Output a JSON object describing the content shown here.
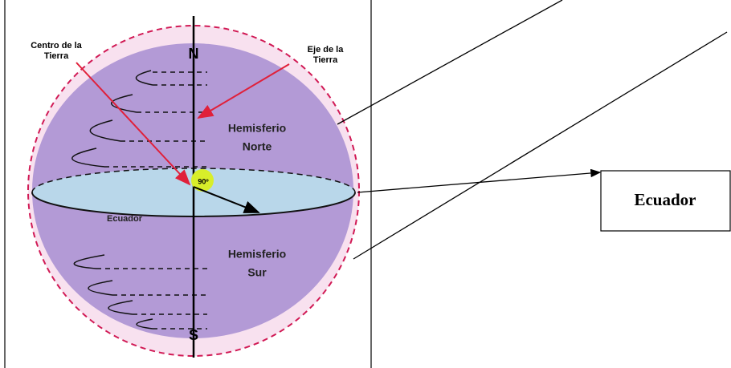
{
  "diagram": {
    "labels": {
      "center": [
        "Centro de la",
        "Tierra"
      ],
      "axis": [
        "Eje de la",
        "Tierra"
      ],
      "north": "N",
      "south": "S",
      "north_hemisphere": [
        "Hemisferio",
        "Norte"
      ],
      "south_hemisphere": [
        "Hemisferio",
        "Sur"
      ],
      "angle": "90º",
      "equator_inner": "Ecuador"
    },
    "callout": "Ecuador"
  }
}
